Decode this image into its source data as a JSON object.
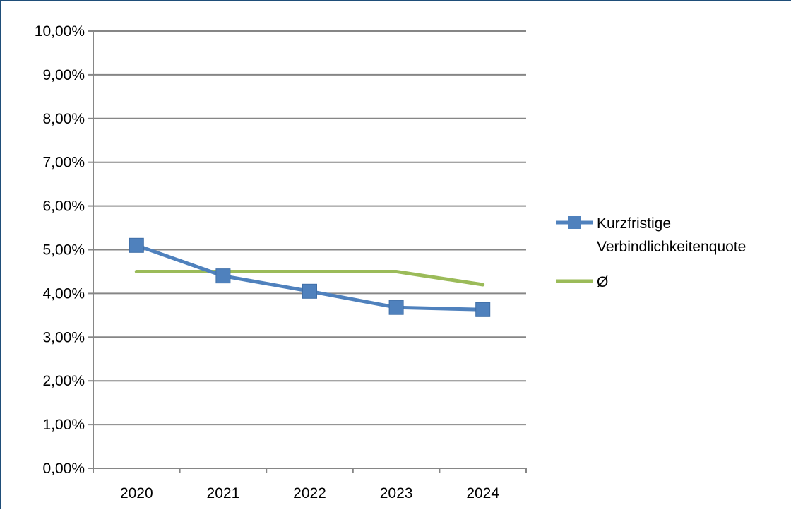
{
  "chart_data": {
    "type": "line",
    "categories": [
      "2020",
      "2021",
      "2022",
      "2023",
      "2024"
    ],
    "series": [
      {
        "name": "Kurzfristige Verbindlichkeitenquote",
        "name_lines": [
          "Kurzfristige",
          "Verbindlichkeitenquote"
        ],
        "values": [
          5.1,
          4.4,
          4.05,
          3.68,
          3.63
        ],
        "color": "#4f81bd",
        "marker": "square"
      },
      {
        "name": "Ø",
        "name_lines": [
          "Ø"
        ],
        "values": [
          4.5,
          4.5,
          4.5,
          4.5,
          4.2
        ],
        "color": "#9bbb59",
        "marker": "none"
      }
    ],
    "y_ticks": [
      0,
      1,
      2,
      3,
      4,
      5,
      6,
      7,
      8,
      9,
      10
    ],
    "y_tick_labels": [
      "0,00%",
      "1,00%",
      "2,00%",
      "3,00%",
      "4,00%",
      "5,00%",
      "6,00%",
      "7,00%",
      "8,00%",
      "9,00%",
      "10,00%"
    ],
    "ylim": [
      0,
      10
    ],
    "y_unit": "%",
    "grid": true,
    "legend_position": "right",
    "title": "",
    "xlabel": "",
    "ylabel": ""
  }
}
